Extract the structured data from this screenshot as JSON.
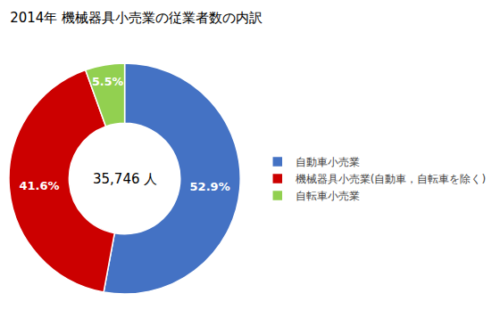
{
  "chart_data": {
    "type": "donut",
    "title": "2014年 機械器具小売業の従業者数の内訳",
    "annotations": [
      "35,746 人"
    ],
    "categories": [
      "自動車小売業",
      "機械器具小売業(自動車，自転車を除く)",
      "自転車小売業"
    ],
    "values": [
      52.9,
      41.6,
      5.5
    ],
    "value_labels": [
      "52.9%",
      "41.6%",
      "5.5%"
    ],
    "colors": [
      "#4472C4",
      "#CC0000",
      "#92D050"
    ],
    "data_labels": true,
    "legend": "right"
  }
}
